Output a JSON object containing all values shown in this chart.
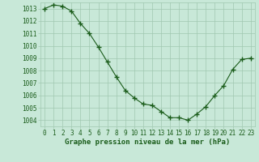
{
  "x": [
    0,
    1,
    2,
    3,
    4,
    5,
    6,
    7,
    8,
    9,
    10,
    11,
    12,
    13,
    14,
    15,
    16,
    17,
    18,
    19,
    20,
    21,
    22,
    23
  ],
  "y": [
    1013.0,
    1013.3,
    1013.2,
    1012.8,
    1011.8,
    1011.0,
    1009.9,
    1008.7,
    1007.5,
    1006.4,
    1005.8,
    1005.3,
    1005.2,
    1004.7,
    1004.2,
    1004.2,
    1004.0,
    1004.5,
    1005.1,
    1006.0,
    1006.8,
    1008.1,
    1008.9,
    1009.0
  ],
  "line_color": "#1a5c1a",
  "marker": "+",
  "bg_color": "#c8e8d8",
  "grid_color": "#a0c8b0",
  "xlabel": "Graphe pression niveau de la mer (hPa)",
  "xlabel_color": "#1a5c1a",
  "ylabel_ticks": [
    1004,
    1005,
    1006,
    1007,
    1008,
    1009,
    1010,
    1011,
    1012,
    1013
  ],
  "ylim": [
    1003.5,
    1013.5
  ],
  "xlim": [
    -0.5,
    23.5
  ],
  "tick_color": "#1a5c1a",
  "tick_fontsize": 5.5,
  "xlabel_fontsize": 6.5,
  "markersize": 4,
  "linewidth": 0.8
}
